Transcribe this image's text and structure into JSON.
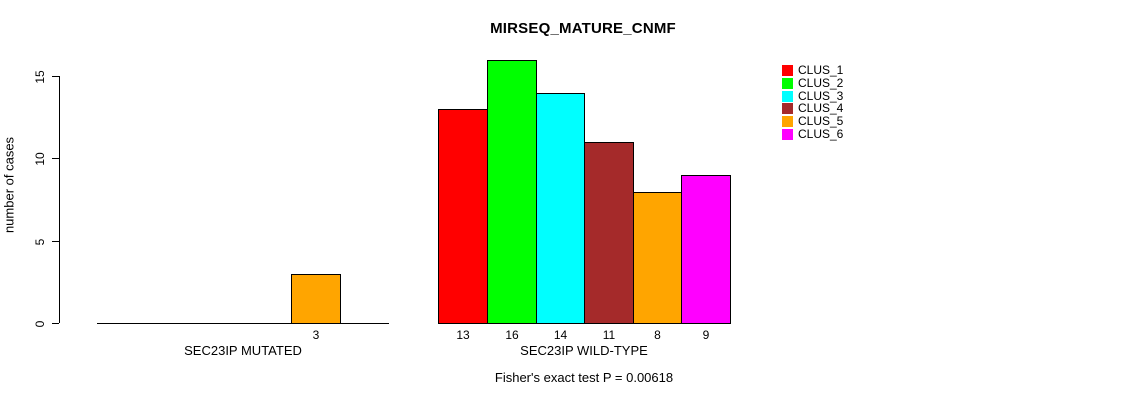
{
  "chart_data": {
    "type": "bar",
    "title": "MIRSEQ_MATURE_CNMF",
    "ylabel": "number of cases",
    "xlabel": "",
    "ylim": [
      0,
      15
    ],
    "yticks": [
      0,
      5,
      10,
      15
    ],
    "grid": false,
    "legend_position": "top-right",
    "note": "Fisher's exact test P = 0.00618",
    "series": [
      {
        "name": "CLUS_1",
        "color": "#FF0000"
      },
      {
        "name": "CLUS_2",
        "color": "#00FF00"
      },
      {
        "name": "CLUS_3",
        "color": "#00FFFF"
      },
      {
        "name": "CLUS_4",
        "color": "#A52A2A"
      },
      {
        "name": "CLUS_5",
        "color": "#FFA500"
      },
      {
        "name": "CLUS_6",
        "color": "#FF00FF"
      }
    ],
    "groups": [
      {
        "label": "SEC23IP MUTATED",
        "values": [
          0,
          0,
          0,
          0,
          3,
          0
        ]
      },
      {
        "label": "SEC23IP WILD-TYPE",
        "values": [
          13,
          16,
          14,
          11,
          8,
          9
        ]
      }
    ]
  }
}
